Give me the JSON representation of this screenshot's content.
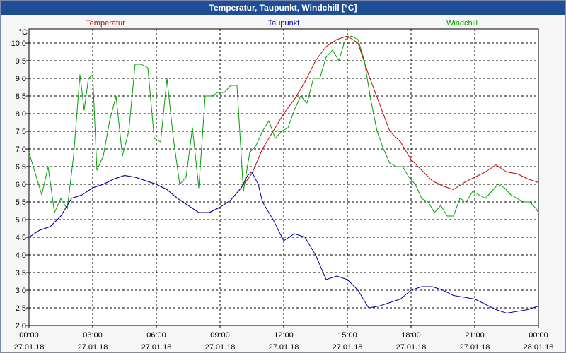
{
  "window": {
    "title": "Temperatur, Taupunkt, Windchill [°C]"
  },
  "chart_data": {
    "type": "line",
    "title": "Temperatur, Taupunkt, Windchill [°C]",
    "ylabel": "°C",
    "ylim": [
      2.0,
      10.4
    ],
    "yticks": [
      "2,0",
      "2,5",
      "3,0",
      "3,5",
      "4,0",
      "4,5",
      "5,0",
      "5,5",
      "6,0",
      "6,5",
      "7,0",
      "7,5",
      "8,0",
      "8,5",
      "9,0",
      "9,5",
      "10,0"
    ],
    "xlim": [
      0,
      24
    ],
    "xticks": [
      {
        "time": "00:00",
        "date": "27.01.18"
      },
      {
        "time": "03:00",
        "date": "27.01.18"
      },
      {
        "time": "06:00",
        "date": "27.01.18"
      },
      {
        "time": "09:00",
        "date": "27.01.18"
      },
      {
        "time": "12:00",
        "date": "27.01.18"
      },
      {
        "time": "15:00",
        "date": "27.01.18"
      },
      {
        "time": "18:00",
        "date": "27.01.18"
      },
      {
        "time": "21:00",
        "date": "27.01.18"
      },
      {
        "time": "00:00",
        "date": "28.01.18"
      }
    ],
    "grid": true,
    "legend_position": "top",
    "series": [
      {
        "name": "Temperatur",
        "color": "#cc0000",
        "x": [
          0,
          0.5,
          1,
          1.5,
          2,
          2.5,
          3,
          3.5,
          4,
          4.5,
          5,
          5.5,
          6,
          6.5,
          7,
          7.5,
          8,
          8.5,
          9,
          9.5,
          10,
          10.5,
          11,
          11.5,
          12,
          12.5,
          13,
          13.5,
          14,
          14.5,
          15,
          15.5,
          16,
          16.5,
          17,
          17.5,
          18,
          18.5,
          19,
          19.5,
          20,
          20.5,
          21,
          21.5,
          22,
          22.5,
          23,
          23.5,
          24
        ],
        "values": [
          4.5,
          4.7,
          4.8,
          5.1,
          5.6,
          5.7,
          5.9,
          6.0,
          6.15,
          6.25,
          6.2,
          6.1,
          6.0,
          5.85,
          5.6,
          5.4,
          5.2,
          5.2,
          5.35,
          5.55,
          5.9,
          6.3,
          7.0,
          7.5,
          8.0,
          8.4,
          8.9,
          9.5,
          9.9,
          10.1,
          10.2,
          10.0,
          9.1,
          8.3,
          7.5,
          7.2,
          6.7,
          6.4,
          6.1,
          5.95,
          5.85,
          6.05,
          6.2,
          6.35,
          6.55,
          6.35,
          6.3,
          6.15,
          6.05
        ]
      },
      {
        "name": "Taupunkt",
        "color": "#0000aa",
        "x": [
          0,
          0.5,
          1,
          1.5,
          2,
          2.5,
          3,
          3.5,
          4,
          4.5,
          5,
          5.5,
          6,
          6.5,
          7,
          7.5,
          8,
          8.5,
          9,
          9.5,
          10,
          10.3,
          10.5,
          10.8,
          11,
          11.5,
          12,
          12.5,
          13,
          13.5,
          14,
          14.5,
          15,
          15.5,
          16,
          16.5,
          17,
          17.5,
          18,
          18.5,
          19,
          19.5,
          20,
          20.5,
          21,
          21.5,
          22,
          22.5,
          23,
          23.5,
          24
        ],
        "values": [
          4.5,
          4.7,
          4.8,
          5.1,
          5.6,
          5.7,
          5.9,
          6.0,
          6.15,
          6.25,
          6.2,
          6.1,
          6.0,
          5.85,
          5.6,
          5.4,
          5.2,
          5.2,
          5.35,
          5.55,
          5.9,
          6.25,
          6.35,
          6.0,
          5.5,
          5.0,
          4.4,
          4.6,
          4.5,
          4.0,
          3.3,
          3.4,
          3.3,
          3.0,
          2.5,
          2.55,
          2.65,
          2.75,
          3.0,
          3.1,
          3.1,
          3.0,
          2.85,
          2.8,
          2.75,
          2.6,
          2.45,
          2.35,
          2.4,
          2.45,
          2.55
        ]
      },
      {
        "name": "Windchill",
        "color": "#00a000",
        "x": [
          0,
          0.3,
          0.6,
          0.9,
          1.2,
          1.5,
          1.8,
          2.1,
          2.4,
          2.6,
          2.8,
          3.0,
          3.2,
          3.5,
          3.8,
          4.1,
          4.4,
          4.7,
          5.0,
          5.3,
          5.6,
          5.9,
          6.2,
          6.5,
          6.8,
          7.1,
          7.4,
          7.7,
          8.0,
          8.3,
          8.6,
          8.9,
          9.2,
          9.5,
          9.8,
          10.1,
          10.4,
          10.7,
          11.0,
          11.3,
          11.6,
          11.9,
          12.2,
          12.5,
          12.8,
          13.1,
          13.4,
          13.7,
          14.0,
          14.3,
          14.6,
          14.9,
          15.2,
          15.5,
          15.8,
          16.1,
          16.4,
          16.7,
          17.0,
          17.3,
          17.6,
          17.9,
          18.2,
          18.5,
          18.8,
          19.1,
          19.4,
          19.7,
          20.0,
          20.3,
          20.6,
          20.9,
          21.2,
          21.5,
          21.8,
          22.1,
          22.4,
          22.7,
          23.0,
          23.3,
          23.6,
          23.9,
          24
        ],
        "values": [
          6.9,
          6.3,
          5.7,
          6.5,
          5.2,
          5.6,
          5.3,
          6.8,
          9.1,
          8.1,
          9.0,
          9.1,
          6.4,
          6.8,
          7.8,
          8.5,
          6.8,
          7.5,
          9.4,
          9.4,
          9.3,
          7.3,
          7.2,
          9.0,
          7.3,
          6.0,
          6.2,
          7.6,
          5.9,
          8.5,
          8.5,
          8.6,
          8.6,
          8.8,
          8.8,
          5.8,
          6.9,
          7.1,
          7.5,
          7.8,
          7.3,
          7.5,
          7.6,
          8.1,
          8.5,
          8.3,
          9.0,
          9.0,
          9.6,
          9.8,
          9.5,
          10.1,
          10.2,
          10.1,
          9.5,
          8.4,
          7.5,
          7.0,
          6.6,
          6.5,
          6.5,
          6.2,
          6.0,
          5.6,
          5.5,
          5.2,
          5.4,
          5.1,
          5.1,
          5.6,
          5.5,
          5.8,
          5.7,
          5.6,
          5.8,
          6.0,
          5.9,
          5.7,
          5.6,
          5.5,
          5.5,
          5.3,
          5.2
        ]
      }
    ]
  }
}
